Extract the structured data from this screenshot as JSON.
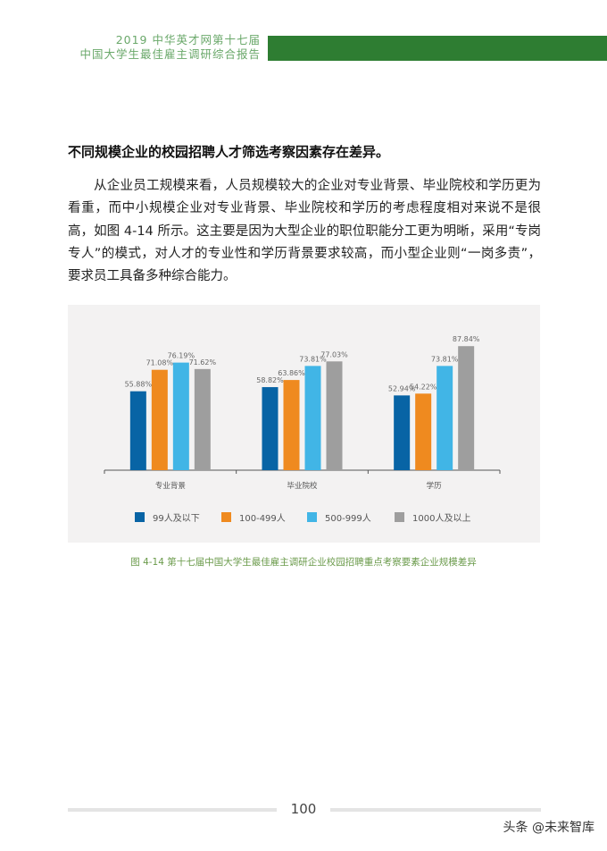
{
  "header": {
    "line1": "2019 中华英才网第十七届",
    "line2": "中国大学生最佳雇主调研综合报告",
    "accent": "#2e7d32"
  },
  "heading": "不同规模企业的校园招聘人才筛选考察因素存在差异。",
  "paragraph": "从企业员工规模来看，人员规模较大的企业对专业背景、毕业院校和学历更为看重，而中小规模企业对专业背景、毕业院校和学历的考虑程度相对来说不是很高，如图 4-14 所示。这主要是因为大型企业的职位职能分工更为明晰，采用“专岗专人”的模式，对人才的专业性和学历背景要求较高，而小型企业则“一岗多责”，要求员工具备多种综合能力。",
  "chart_data": {
    "type": "bar",
    "categories": [
      "专业背景",
      "毕业院校",
      "学历"
    ],
    "series": [
      {
        "name": "99人及以下",
        "values": [
          55.88,
          58.82,
          52.94
        ],
        "labels": [
          "55.88%",
          "58.82%",
          "52.94%"
        ],
        "color": "#0864a5"
      },
      {
        "name": "100-499人",
        "values": [
          71.08,
          63.86,
          54.22
        ],
        "labels": [
          "71.08%",
          "63.86%",
          "54.22%"
        ],
        "color": "#ef8a1f"
      },
      {
        "name": "500-999人",
        "values": [
          76.19,
          73.81,
          73.81
        ],
        "labels": [
          "76.19%",
          "73.81%",
          "73.81%"
        ],
        "color": "#41b5e6"
      },
      {
        "name": "1000人及以上",
        "values": [
          71.62,
          77.03,
          87.84
        ],
        "labels": [
          "71.62%",
          "77.03%",
          "87.84%"
        ],
        "color": "#9e9e9e"
      }
    ],
    "ylim": [
      0,
      100
    ],
    "grid": false,
    "legend": "bottom"
  },
  "caption": "图 4-14 第十七届中国大学生最佳雇主调研企业校园招聘重点考察要素企业规模差异",
  "page_number": "100",
  "watermark": "头条 @未来智库"
}
